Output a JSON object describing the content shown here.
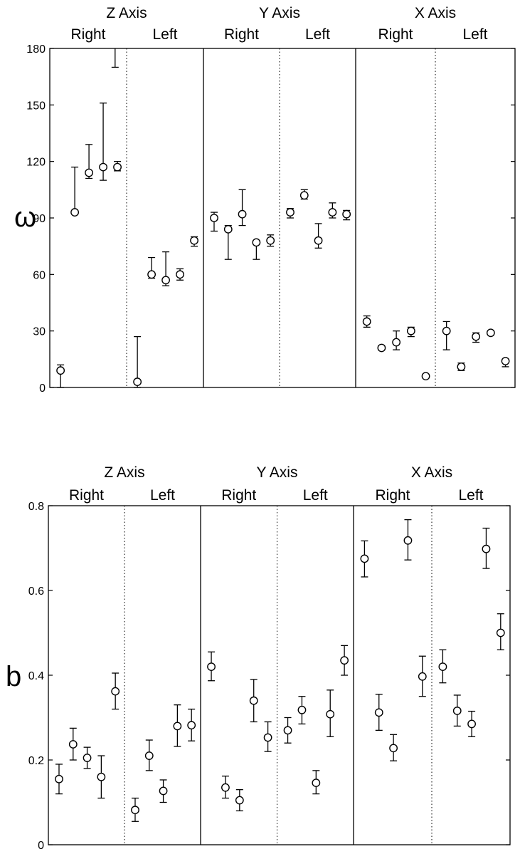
{
  "chart_data": [
    {
      "type": "scatter",
      "ylabel": "ω",
      "ylim": [
        0,
        180
      ],
      "yticks": [
        "0",
        "30",
        "60",
        "90",
        "120",
        "150",
        "180"
      ],
      "panels": [
        {
          "title": "Z Axis",
          "groups": [
            {
              "label": "Right",
              "points": [
                {
                  "y": 9,
                  "lo": 0,
                  "hi": 12
                },
                {
                  "y": 93,
                  "lo": 93,
                  "hi": 117
                },
                {
                  "y": 114,
                  "lo": 111,
                  "hi": 129
                },
                {
                  "y": 117,
                  "lo": 110,
                  "hi": 151
                },
                {
                  "y": 117,
                  "lo": 115,
                  "hi": 120
                }
              ]
            },
            {
              "label": "Left",
              "points": [
                {
                  "y": 3,
                  "lo": 0,
                  "hi": 27
                },
                {
                  "y": 60,
                  "lo": 58,
                  "hi": 69
                },
                {
                  "y": 57,
                  "lo": 54,
                  "hi": 72
                },
                {
                  "y": 60,
                  "lo": 57,
                  "hi": 63
                },
                {
                  "y": 78,
                  "lo": 75,
                  "hi": 80
                }
              ]
            }
          ],
          "extra_points": [
            {
              "x": 0.85,
              "y": 180,
              "lo": 170,
              "hi": 180
            }
          ]
        },
        {
          "title": "Y Axis",
          "groups": [
            {
              "label": "Right",
              "points": [
                {
                  "y": 90,
                  "lo": 83,
                  "hi": 93
                },
                {
                  "y": 84,
                  "lo": 68,
                  "hi": 86
                },
                {
                  "y": 92,
                  "lo": 86,
                  "hi": 105
                },
                {
                  "y": 77,
                  "lo": 68,
                  "hi": 78
                },
                {
                  "y": 78,
                  "lo": 75,
                  "hi": 81
                }
              ]
            },
            {
              "label": "Left",
              "points": [
                {
                  "y": 93,
                  "lo": 90,
                  "hi": 95
                },
                {
                  "y": 102,
                  "lo": 100,
                  "hi": 105
                },
                {
                  "y": 78,
                  "lo": 74,
                  "hi": 87
                },
                {
                  "y": 93,
                  "lo": 90,
                  "hi": 98
                },
                {
                  "y": 92,
                  "lo": 89,
                  "hi": 94
                }
              ]
            }
          ]
        },
        {
          "title": "X Axis",
          "groups": [
            {
              "label": "Right",
              "points": [
                {
                  "y": 35,
                  "lo": 32,
                  "hi": 38
                },
                {
                  "y": 21,
                  "lo": 20,
                  "hi": 22
                },
                {
                  "y": 24,
                  "lo": 20,
                  "hi": 30
                },
                {
                  "y": 30,
                  "lo": 27,
                  "hi": 32
                },
                {
                  "y": 6,
                  "lo": 5,
                  "hi": 7
                }
              ]
            },
            {
              "label": "Left",
              "points": [
                {
                  "y": 30,
                  "lo": 20,
                  "hi": 35
                },
                {
                  "y": 11,
                  "lo": 9,
                  "hi": 13
                },
                {
                  "y": 27,
                  "lo": 24,
                  "hi": 29
                },
                {
                  "y": 29,
                  "lo": 28,
                  "hi": 30
                },
                {
                  "y": 14,
                  "lo": 11,
                  "hi": 15
                }
              ]
            }
          ]
        }
      ]
    },
    {
      "type": "scatter",
      "ylabel": "b",
      "ylim": [
        0,
        0.8
      ],
      "yticks": [
        "0",
        "0.2",
        "0.4",
        "0.6",
        "0.8"
      ],
      "panels": [
        {
          "title": "Z Axis",
          "groups": [
            {
              "label": "Right",
              "points": [
                {
                  "y": 0.155,
                  "lo": 0.12,
                  "hi": 0.19
                },
                {
                  "y": 0.237,
                  "lo": 0.2,
                  "hi": 0.275
                },
                {
                  "y": 0.205,
                  "lo": 0.18,
                  "hi": 0.23
                },
                {
                  "y": 0.16,
                  "lo": 0.11,
                  "hi": 0.21
                },
                {
                  "y": 0.362,
                  "lo": 0.32,
                  "hi": 0.405
                }
              ]
            },
            {
              "label": "Left",
              "points": [
                {
                  "y": 0.082,
                  "lo": 0.055,
                  "hi": 0.11
                },
                {
                  "y": 0.21,
                  "lo": 0.175,
                  "hi": 0.247
                },
                {
                  "y": 0.127,
                  "lo": 0.1,
                  "hi": 0.153
                },
                {
                  "y": 0.28,
                  "lo": 0.232,
                  "hi": 0.33
                },
                {
                  "y": 0.282,
                  "lo": 0.245,
                  "hi": 0.32
                }
              ]
            }
          ]
        },
        {
          "title": "Y Axis",
          "groups": [
            {
              "label": "Right",
              "points": [
                {
                  "y": 0.42,
                  "lo": 0.387,
                  "hi": 0.455
                },
                {
                  "y": 0.135,
                  "lo": 0.11,
                  "hi": 0.162
                },
                {
                  "y": 0.105,
                  "lo": 0.08,
                  "hi": 0.13
                },
                {
                  "y": 0.34,
                  "lo": 0.29,
                  "hi": 0.39
                },
                {
                  "y": 0.253,
                  "lo": 0.22,
                  "hi": 0.29
                }
              ]
            },
            {
              "label": "Left",
              "points": [
                {
                  "y": 0.27,
                  "lo": 0.24,
                  "hi": 0.3
                },
                {
                  "y": 0.318,
                  "lo": 0.285,
                  "hi": 0.35
                },
                {
                  "y": 0.146,
                  "lo": 0.12,
                  "hi": 0.175
                },
                {
                  "y": 0.308,
                  "lo": 0.255,
                  "hi": 0.365
                },
                {
                  "y": 0.435,
                  "lo": 0.4,
                  "hi": 0.47
                }
              ]
            }
          ]
        },
        {
          "title": "X Axis",
          "groups": [
            {
              "label": "Right",
              "points": [
                {
                  "y": 0.675,
                  "lo": 0.632,
                  "hi": 0.717
                },
                {
                  "y": 0.312,
                  "lo": 0.27,
                  "hi": 0.355
                },
                {
                  "y": 0.228,
                  "lo": 0.198,
                  "hi": 0.26
                },
                {
                  "y": 0.718,
                  "lo": 0.672,
                  "hi": 0.767
                },
                {
                  "y": 0.397,
                  "lo": 0.35,
                  "hi": 0.445
                }
              ]
            },
            {
              "label": "Left",
              "points": [
                {
                  "y": 0.42,
                  "lo": 0.382,
                  "hi": 0.46
                },
                {
                  "y": 0.316,
                  "lo": 0.28,
                  "hi": 0.353
                },
                {
                  "y": 0.285,
                  "lo": 0.255,
                  "hi": 0.315
                },
                {
                  "y": 0.698,
                  "lo": 0.652,
                  "hi": 0.747
                },
                {
                  "y": 0.5,
                  "lo": 0.46,
                  "hi": 0.545
                }
              ]
            }
          ]
        }
      ]
    }
  ]
}
